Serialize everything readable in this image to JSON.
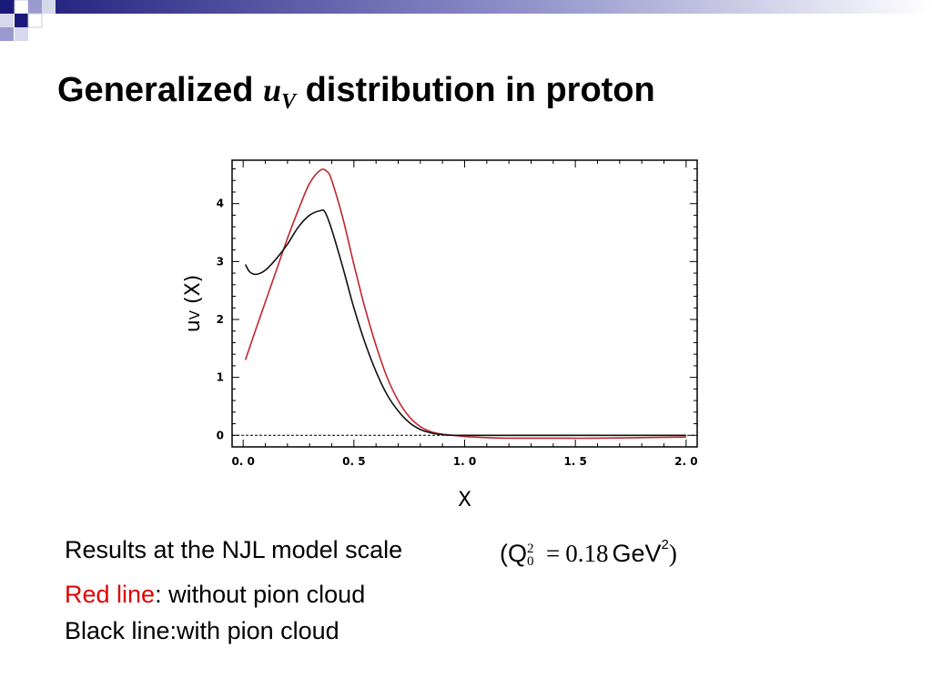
{
  "slide": {
    "title_prefix": "Generalized",
    "title_var": "u",
    "title_var_sub": "V",
    "title_suffix": "distribution in proton",
    "accent_colors": [
      "#1a1a7a",
      "#9a9ad0",
      "#d8d8ec"
    ]
  },
  "notes": {
    "scale_text": "Results at the NJL model scale",
    "formula": {
      "open": "(Q",
      "q_sup": "2",
      "q_sub": "0",
      "equals": "=",
      "value": "0.18",
      "unit": "GeV",
      "unit_sup": "2",
      "close": ")"
    },
    "red_label": "Red line",
    "red_desc": ": without pion cloud",
    "black_line": "Black line:with pion cloud"
  },
  "chart_data": {
    "type": "line",
    "xlabel": "X",
    "ylabel_main": "u",
    "ylabel_sub": "V",
    "ylabel_suffix": " (X)",
    "xlim": [
      -0.05,
      2.05
    ],
    "ylim": [
      -0.2,
      4.75
    ],
    "x_ticks": [
      0.0,
      0.5,
      1.0,
      1.5,
      2.0
    ],
    "x_tick_labels": [
      "0. 0",
      "0. 5",
      "1. 0",
      "1. 5",
      "2. 0"
    ],
    "y_ticks": [
      0,
      1,
      2,
      3,
      4
    ],
    "y_tick_labels": [
      "0",
      "1",
      "2",
      "3",
      "4"
    ],
    "zero_line": "dashed",
    "series": [
      {
        "color": "#c0272d",
        "x": [
          0.01,
          0.05,
          0.1,
          0.15,
          0.2,
          0.25,
          0.3,
          0.35,
          0.38,
          0.4,
          0.45,
          0.5,
          0.55,
          0.6,
          0.65,
          0.7,
          0.75,
          0.8,
          0.85,
          0.9,
          0.95,
          1.0,
          1.1,
          1.2,
          1.4,
          1.6,
          1.8,
          2.0
        ],
        "y": [
          1.3,
          1.75,
          2.3,
          2.85,
          3.4,
          3.9,
          4.35,
          4.58,
          4.55,
          4.4,
          3.75,
          2.95,
          2.2,
          1.55,
          1.0,
          0.6,
          0.32,
          0.15,
          0.06,
          0.02,
          0.0,
          -0.02,
          -0.04,
          -0.05,
          -0.05,
          -0.05,
          -0.04,
          -0.03
        ]
      },
      {
        "color": "#111111",
        "x": [
          0.01,
          0.03,
          0.06,
          0.1,
          0.15,
          0.2,
          0.25,
          0.3,
          0.35,
          0.37,
          0.4,
          0.45,
          0.5,
          0.55,
          0.6,
          0.65,
          0.7,
          0.75,
          0.8,
          0.85,
          0.9,
          0.95,
          1.0,
          1.2,
          1.5,
          2.0
        ],
        "y": [
          2.95,
          2.82,
          2.78,
          2.85,
          3.05,
          3.3,
          3.6,
          3.8,
          3.88,
          3.85,
          3.55,
          2.9,
          2.2,
          1.6,
          1.1,
          0.7,
          0.42,
          0.22,
          0.1,
          0.04,
          0.01,
          0.0,
          0.0,
          0.0,
          0.0,
          0.0
        ]
      }
    ]
  }
}
